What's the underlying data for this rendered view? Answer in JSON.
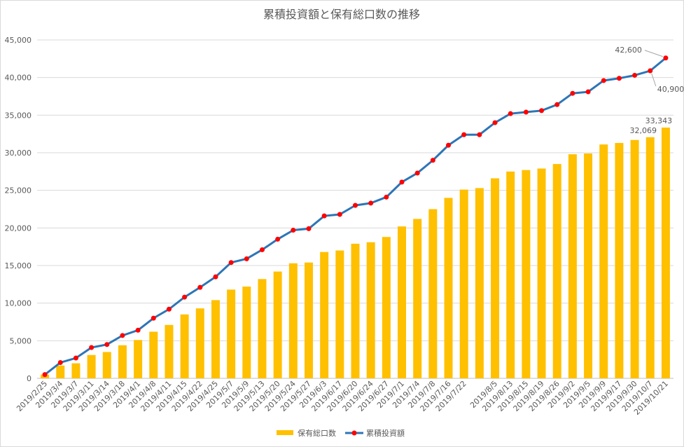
{
  "chart_data": {
    "type": "bar-line",
    "title": "累積投資額と保有総口数の推移",
    "categories": [
      "2019/2/25",
      "2019/3/4",
      "2019/3/7",
      "2019/3/11",
      "2019/3/14",
      "2019/3/18",
      "2019/4/1",
      "2019/4/8",
      "2019/4/11",
      "2019/4/15",
      "2019/4/22",
      "2019/4/25",
      "2019/5/7",
      "2019/5/9",
      "2019/5/13",
      "2019/5/20",
      "2019/5/24",
      "2019/5/27",
      "2019/6/3",
      "2019/6/17",
      "2019/6/20",
      "2019/6/24",
      "2019/6/27",
      "2019/7/1",
      "2019/7/4",
      "2019/7/8",
      "2019/7/16",
      "2019/7/22",
      null,
      "2019/8/5",
      "2019/8/13",
      "2019/8/15",
      "2019/8/19",
      "2019/8/26",
      "2019/9/2",
      "2019/9/5",
      "2019/9/9",
      "2019/9/17",
      "2019/9/30",
      "2019/10/7",
      "2019/10/21"
    ],
    "series": [
      {
        "name": "保有総口数",
        "type": "bar",
        "color": "#ffc000",
        "values": [
          500,
          1700,
          2000,
          3100,
          3500,
          4400,
          5100,
          6200,
          7100,
          8500,
          9300,
          10400,
          11800,
          12200,
          13200,
          14200,
          15300,
          15400,
          16800,
          17000,
          17900,
          18100,
          18800,
          20200,
          21200,
          22500,
          24000,
          25100,
          25300,
          26600,
          27500,
          27700,
          27900,
          28500,
          29800,
          29900,
          31100,
          31300,
          31700,
          32069,
          33343
        ],
        "value_labels": [
          null,
          null,
          null,
          null,
          null,
          null,
          null,
          null,
          null,
          null,
          null,
          null,
          null,
          null,
          null,
          null,
          null,
          null,
          null,
          null,
          null,
          null,
          null,
          null,
          null,
          null,
          null,
          null,
          null,
          null,
          null,
          null,
          null,
          null,
          null,
          null,
          null,
          null,
          null,
          "32,069",
          "33,343"
        ]
      },
      {
        "name": "累積投資額",
        "type": "line",
        "color": "#2e75b6",
        "marker_color": "#ff0000",
        "values": [
          500,
          2100,
          2700,
          4100,
          4500,
          5700,
          6400,
          8000,
          9200,
          10800,
          12100,
          13500,
          15400,
          15900,
          17100,
          18500,
          19700,
          19900,
          21600,
          21800,
          23000,
          23300,
          24100,
          26100,
          27300,
          29000,
          31000,
          32400,
          32400,
          34000,
          35200,
          35400,
          35600,
          36400,
          37900,
          38100,
          39600,
          39900,
          40300,
          40900,
          42600
        ],
        "value_labels": [
          null,
          null,
          null,
          null,
          null,
          null,
          null,
          null,
          null,
          null,
          null,
          null,
          null,
          null,
          null,
          null,
          null,
          null,
          null,
          null,
          null,
          null,
          null,
          null,
          null,
          null,
          null,
          null,
          null,
          null,
          null,
          null,
          null,
          null,
          null,
          null,
          null,
          null,
          null,
          "40,900",
          "42,600"
        ]
      }
    ],
    "ylim": [
      0,
      45000
    ],
    "yticks": [
      0,
      {
        "value": 5000,
        "label": "5,000"
      },
      {
        "value": 10000,
        "label": "10,000"
      },
      {
        "value": 15000,
        "label": "15,000"
      },
      {
        "value": 20000,
        "label": "20,000"
      },
      {
        "value": 25000,
        "label": "25,000"
      },
      {
        "value": 30000,
        "label": "30,000"
      },
      {
        "value": 35000,
        "label": "35,000"
      },
      {
        "value": 40000,
        "label": "40,000"
      },
      {
        "value": 45000,
        "label": "45,000"
      }
    ],
    "grid": true,
    "legend": "bottom"
  }
}
